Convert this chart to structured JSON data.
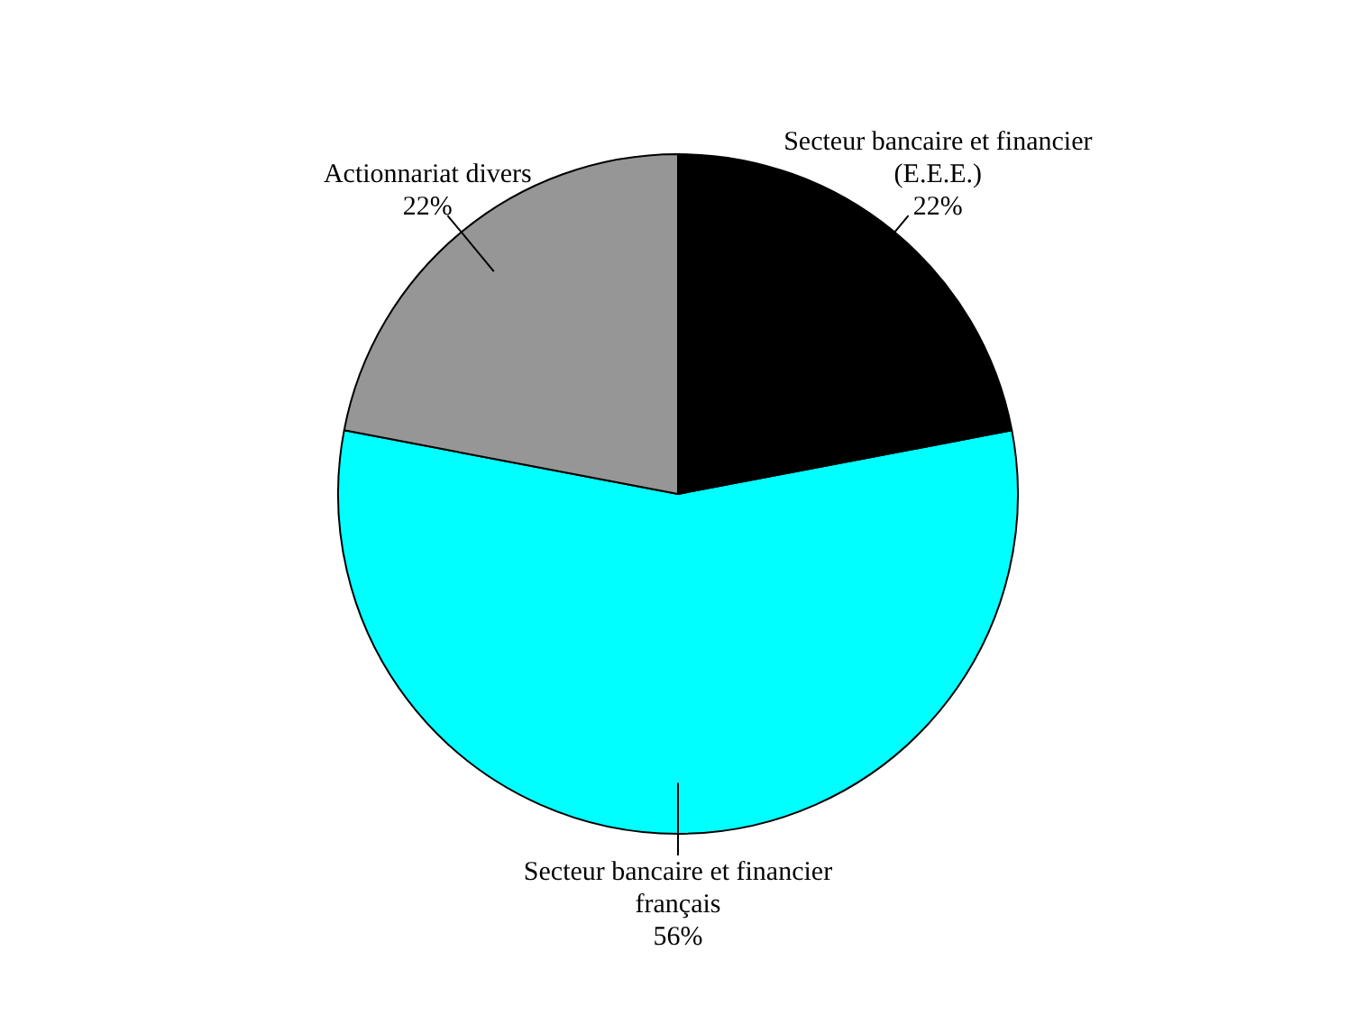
{
  "chart_data": {
    "type": "pie",
    "categories": [
      "Secteur bancaire et financier français",
      "Actionnariat divers",
      "Secteur bancaire et financier (E.E.E.)"
    ],
    "values": [
      56,
      22,
      22
    ],
    "value_labels": [
      "56%",
      "22%",
      "22%"
    ],
    "colors": [
      "#00ffff",
      "#969696",
      "#000000"
    ],
    "legend": false
  }
}
